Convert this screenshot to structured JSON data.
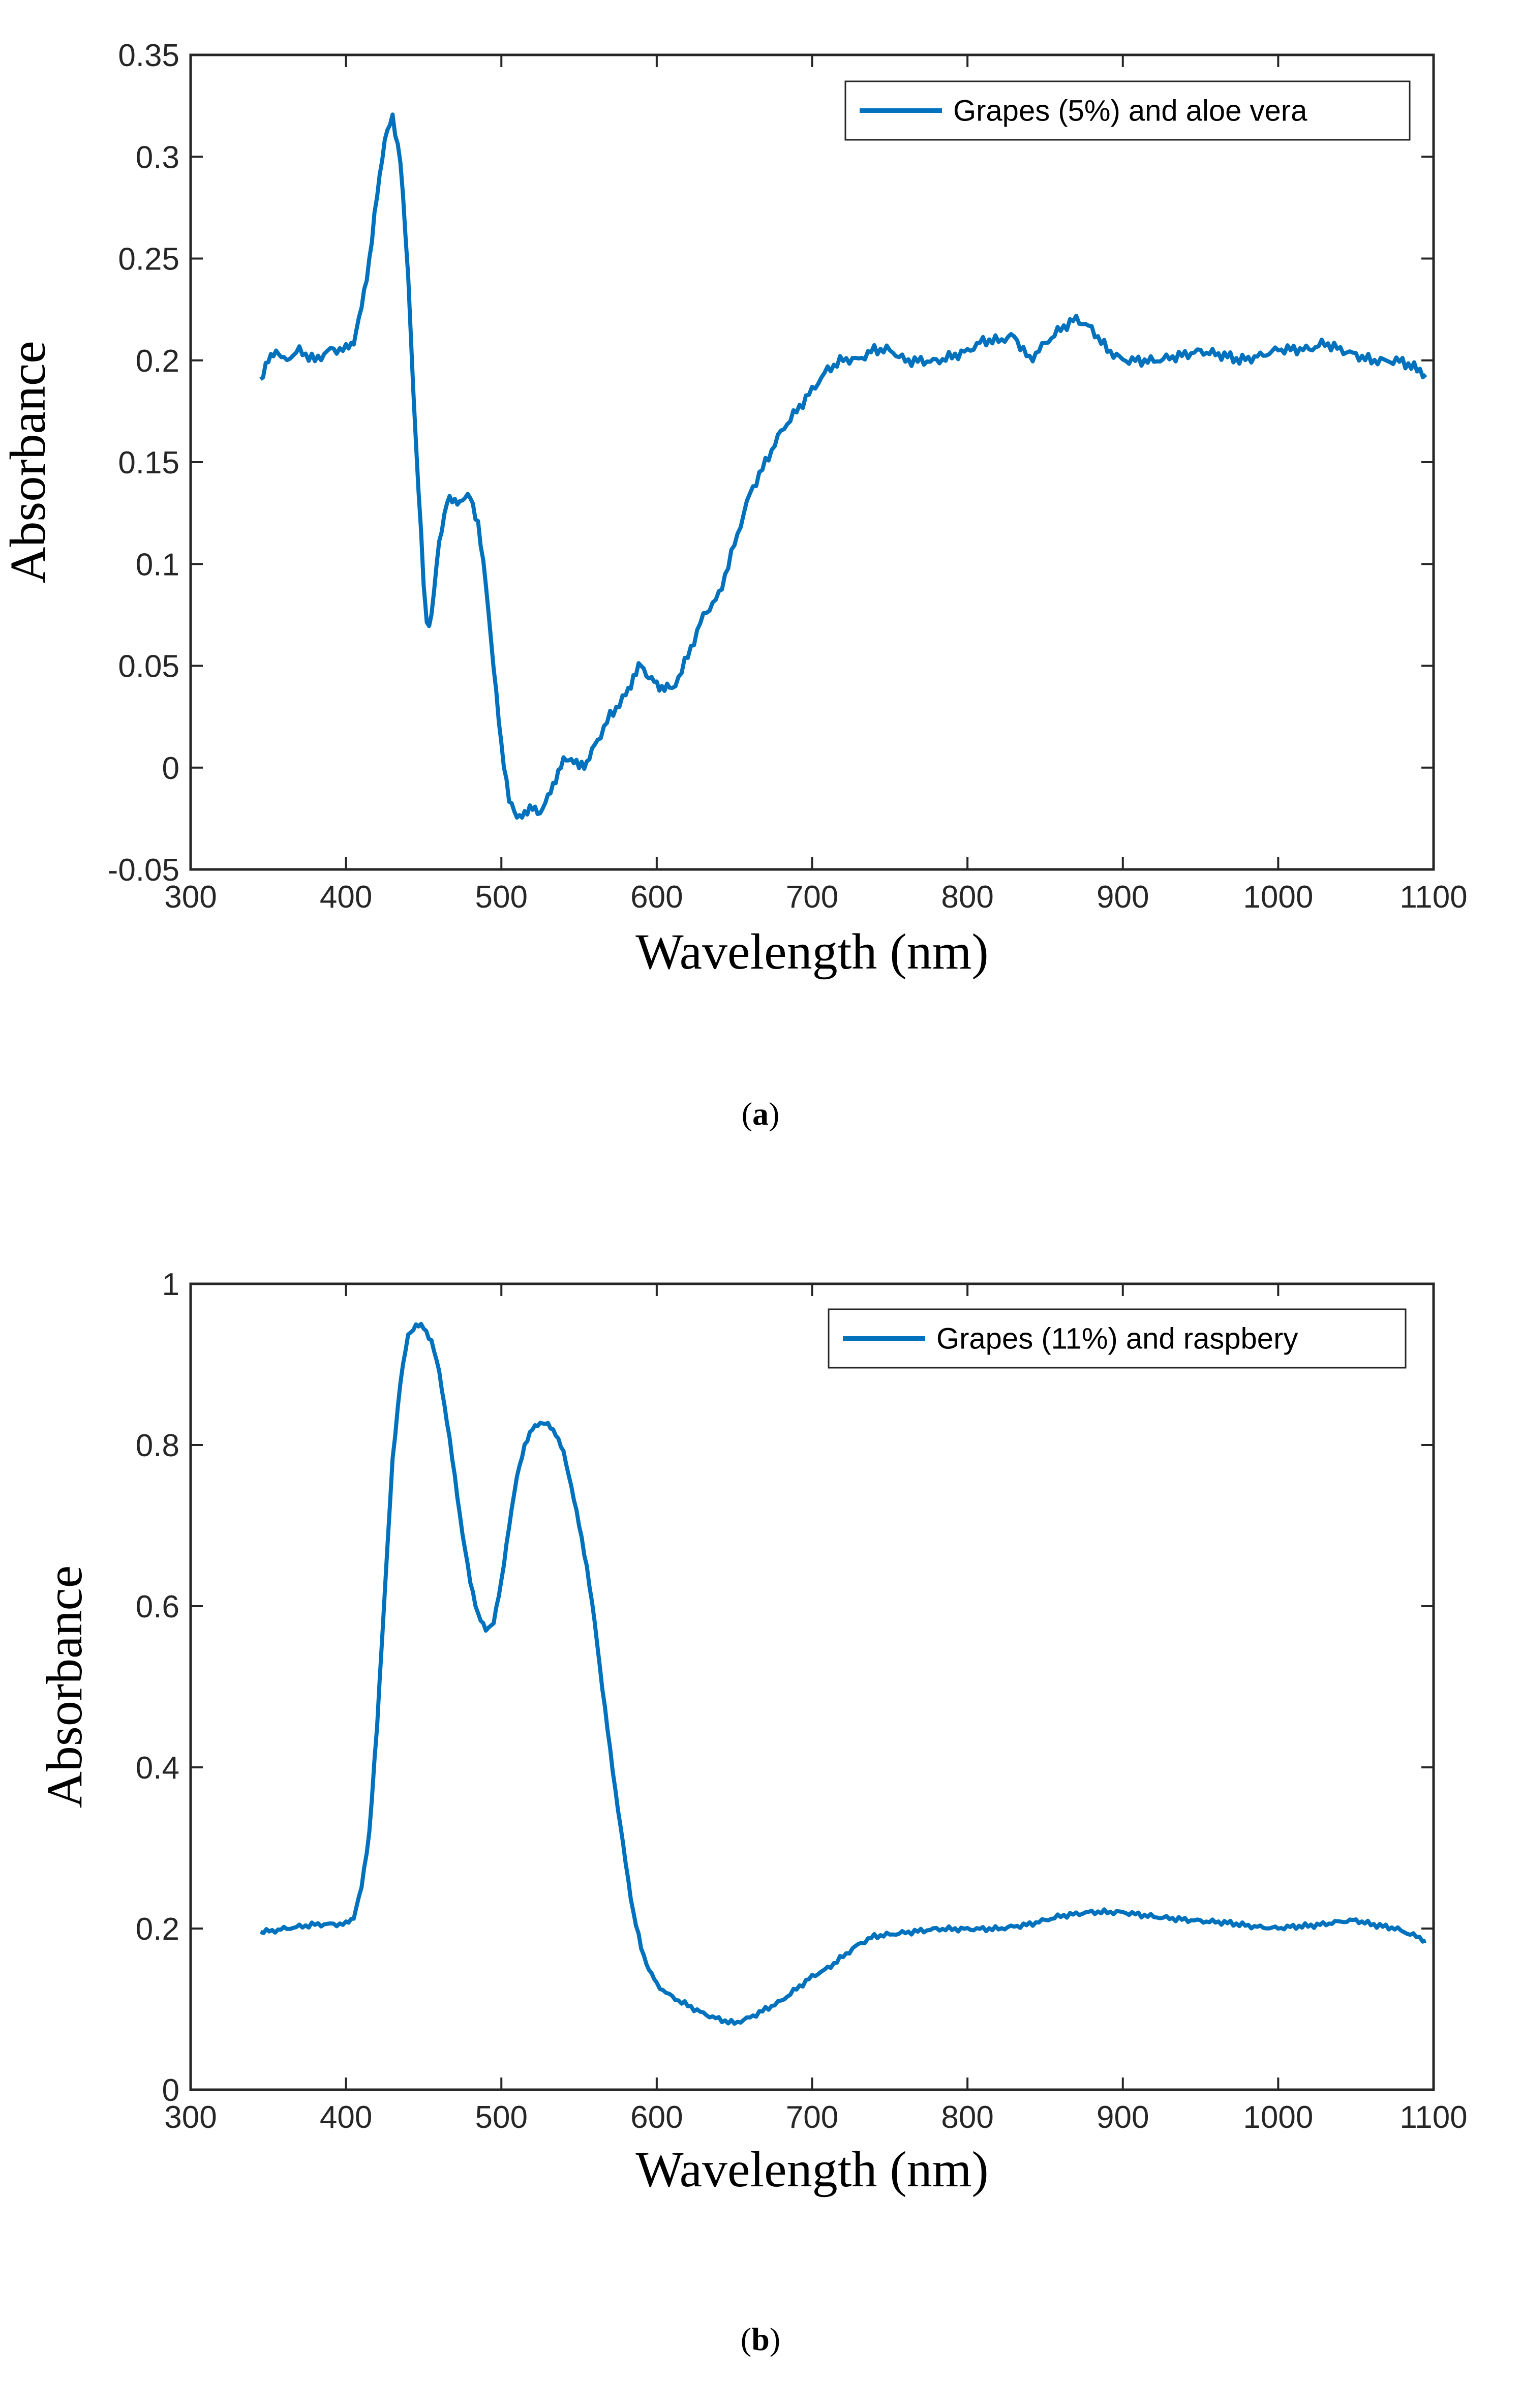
{
  "chart_data": [
    {
      "type": "line",
      "caption_open": "(",
      "caption_letter": "a",
      "caption_close": ")",
      "xlabel": "Wavelength (nm)",
      "ylabel": "Absorbance",
      "xlim": [
        300,
        1100
      ],
      "ylim": [
        -0.05,
        0.35
      ],
      "xticks": [
        "300",
        "400",
        "500",
        "600",
        "700",
        "800",
        "900",
        "1000",
        "1100"
      ],
      "yticks": [
        "-0.05",
        "0",
        "0.05",
        "0.1",
        "0.15",
        "0.2",
        "0.25",
        "0.3",
        "0.35"
      ],
      "grid": false,
      "legend_position": "top-right",
      "color": "#0072bd",
      "series": [
        {
          "name": "Grapes (5%) and aloe vera",
          "x": [
            345,
            350,
            355,
            360,
            370,
            380,
            390,
            400,
            405,
            410,
            415,
            420,
            425,
            430,
            435,
            440,
            445,
            450,
            452,
            455,
            460,
            465,
            470,
            475,
            480,
            485,
            490,
            495,
            500,
            505,
            510,
            515,
            520,
            525,
            530,
            535,
            540,
            545,
            550,
            555,
            560,
            570,
            580,
            585,
            590,
            595,
            600,
            605,
            610,
            620,
            630,
            640,
            650,
            660,
            670,
            680,
            690,
            700,
            710,
            720,
            730,
            740,
            750,
            760,
            780,
            800,
            810,
            820,
            830,
            840,
            850,
            860,
            870,
            880,
            890,
            900,
            920,
            950,
            975,
            1000,
            1020,
            1030,
            1040,
            1060,
            1080,
            1095
          ],
          "values": [
            0.19,
            0.2,
            0.205,
            0.2,
            0.205,
            0.2,
            0.205,
            0.205,
            0.21,
            0.225,
            0.25,
            0.28,
            0.31,
            0.318,
            0.3,
            0.24,
            0.16,
            0.09,
            0.07,
            0.075,
            0.11,
            0.132,
            0.13,
            0.132,
            0.133,
            0.12,
            0.09,
            0.05,
            0.01,
            -0.015,
            -0.025,
            -0.022,
            -0.02,
            -0.022,
            -0.015,
            -0.005,
            0.003,
            0.005,
            0.0,
            0.003,
            0.01,
            0.025,
            0.035,
            0.045,
            0.05,
            0.045,
            0.04,
            0.04,
            0.038,
            0.055,
            0.075,
            0.085,
            0.11,
            0.135,
            0.15,
            0.165,
            0.175,
            0.185,
            0.195,
            0.2,
            0.2,
            0.205,
            0.205,
            0.2,
            0.2,
            0.205,
            0.21,
            0.21,
            0.212,
            0.2,
            0.208,
            0.215,
            0.22,
            0.215,
            0.205,
            0.2,
            0.2,
            0.205,
            0.2,
            0.205,
            0.205,
            0.208,
            0.205,
            0.2,
            0.2,
            0.193
          ]
        }
      ]
    },
    {
      "type": "line",
      "caption_open": "(",
      "caption_letter": "b",
      "caption_close": ")",
      "xlabel": "Wavelength (nm)",
      "ylabel": "Absorbance",
      "xlim": [
        300,
        1100
      ],
      "ylim": [
        0,
        1
      ],
      "xticks": [
        "300",
        "400",
        "500",
        "600",
        "700",
        "800",
        "900",
        "1000",
        "1100"
      ],
      "yticks": [
        "0",
        "0.2",
        "0.4",
        "0.6",
        "0.8",
        "1"
      ],
      "grid": false,
      "legend_position": "top-right",
      "color": "#0072bd",
      "series": [
        {
          "name": "Grapes (11%) and raspbery",
          "x": [
            345,
            360,
            380,
            400,
            405,
            410,
            415,
            420,
            425,
            430,
            435,
            440,
            445,
            450,
            455,
            460,
            465,
            470,
            475,
            480,
            485,
            490,
            495,
            500,
            505,
            510,
            515,
            520,
            525,
            530,
            535,
            540,
            545,
            550,
            555,
            560,
            565,
            570,
            575,
            580,
            585,
            590,
            595,
            600,
            610,
            620,
            630,
            640,
            650,
            660,
            670,
            680,
            690,
            700,
            710,
            720,
            730,
            740,
            760,
            780,
            800,
            820,
            840,
            860,
            880,
            900,
            920,
            950,
            975,
            1000,
            1025,
            1050,
            1075,
            1095
          ],
          "values": [
            0.195,
            0.2,
            0.205,
            0.205,
            0.215,
            0.25,
            0.32,
            0.45,
            0.62,
            0.78,
            0.88,
            0.935,
            0.95,
            0.945,
            0.93,
            0.89,
            0.83,
            0.76,
            0.69,
            0.63,
            0.59,
            0.57,
            0.58,
            0.63,
            0.7,
            0.76,
            0.8,
            0.82,
            0.828,
            0.825,
            0.815,
            0.79,
            0.75,
            0.7,
            0.65,
            0.58,
            0.5,
            0.42,
            0.35,
            0.28,
            0.22,
            0.175,
            0.15,
            0.13,
            0.115,
            0.105,
            0.095,
            0.088,
            0.083,
            0.09,
            0.1,
            0.11,
            0.125,
            0.14,
            0.15,
            0.165,
            0.18,
            0.19,
            0.195,
            0.2,
            0.2,
            0.2,
            0.205,
            0.215,
            0.22,
            0.22,
            0.215,
            0.21,
            0.205,
            0.2,
            0.205,
            0.21,
            0.2,
            0.185
          ]
        }
      ]
    }
  ]
}
